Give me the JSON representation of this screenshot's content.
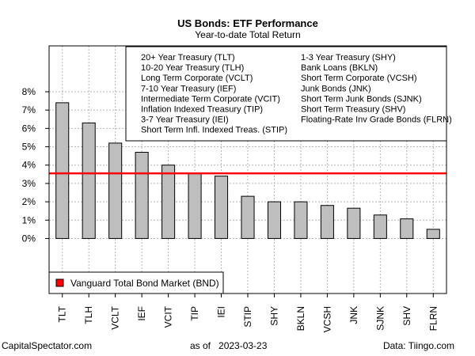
{
  "chart_data": {
    "type": "bar",
    "title": "US Bonds: ETF Performance",
    "subtitle": "Year-to-date Total Return",
    "xlabel": "",
    "ylabel": "",
    "ylim": [
      -3.0,
      10.5
    ],
    "yticks": [
      "0%",
      "1%",
      "2%",
      "3%",
      "4%",
      "5%",
      "6%",
      "7%",
      "8%"
    ],
    "grid": true,
    "bar_color": "#bebebe",
    "categories": [
      "TLT",
      "TLH",
      "VCLT",
      "IEF",
      "VCIT",
      "TIP",
      "IEI",
      "STIP",
      "SHY",
      "BKLN",
      "VCSH",
      "JNK",
      "SJNK",
      "SHV",
      "FLRN"
    ],
    "values": [
      7.4,
      6.3,
      5.2,
      4.7,
      4.0,
      3.55,
      3.4,
      2.3,
      2.0,
      2.0,
      1.8,
      1.65,
      1.28,
      1.07,
      0.5
    ],
    "reference_line": {
      "name": "Vanguard Total Bond Market (BND)",
      "value": 3.55,
      "color": "#ff0000"
    },
    "legend": {
      "placement": "top-right",
      "entries": [
        "20+ Year Treasury (TLT)",
        "10-20 Year Treasury (TLH)",
        "Long Term Corporate (VCLT)",
        "7-10 Year Treasury (IEF)",
        "Intermediate Term Corporate (VCIT)",
        "Inflation Indexed Treasury (TIP)",
        "3-7 Year Treasury (IEI)",
        "Short Term Infl. Indexed Treas. (STIP)",
        "1-3 Year Treasury (SHY)",
        "Bank Loans (BKLN)",
        "Short Term Corporate (VCSH)",
        "Junk Bonds (JNK)",
        "Short Term Junk Bonds (SJNK)",
        "Short Term Treasury (SHV)",
        "Floating-Rate Inv Grade Bonds (FLRN)"
      ]
    },
    "reference_legend_placement": "bottom-left"
  },
  "footer": {
    "left": "CapitalSpectator.com",
    "center": "as of   2023-03-23",
    "right": "Data: Tiingo.com"
  }
}
